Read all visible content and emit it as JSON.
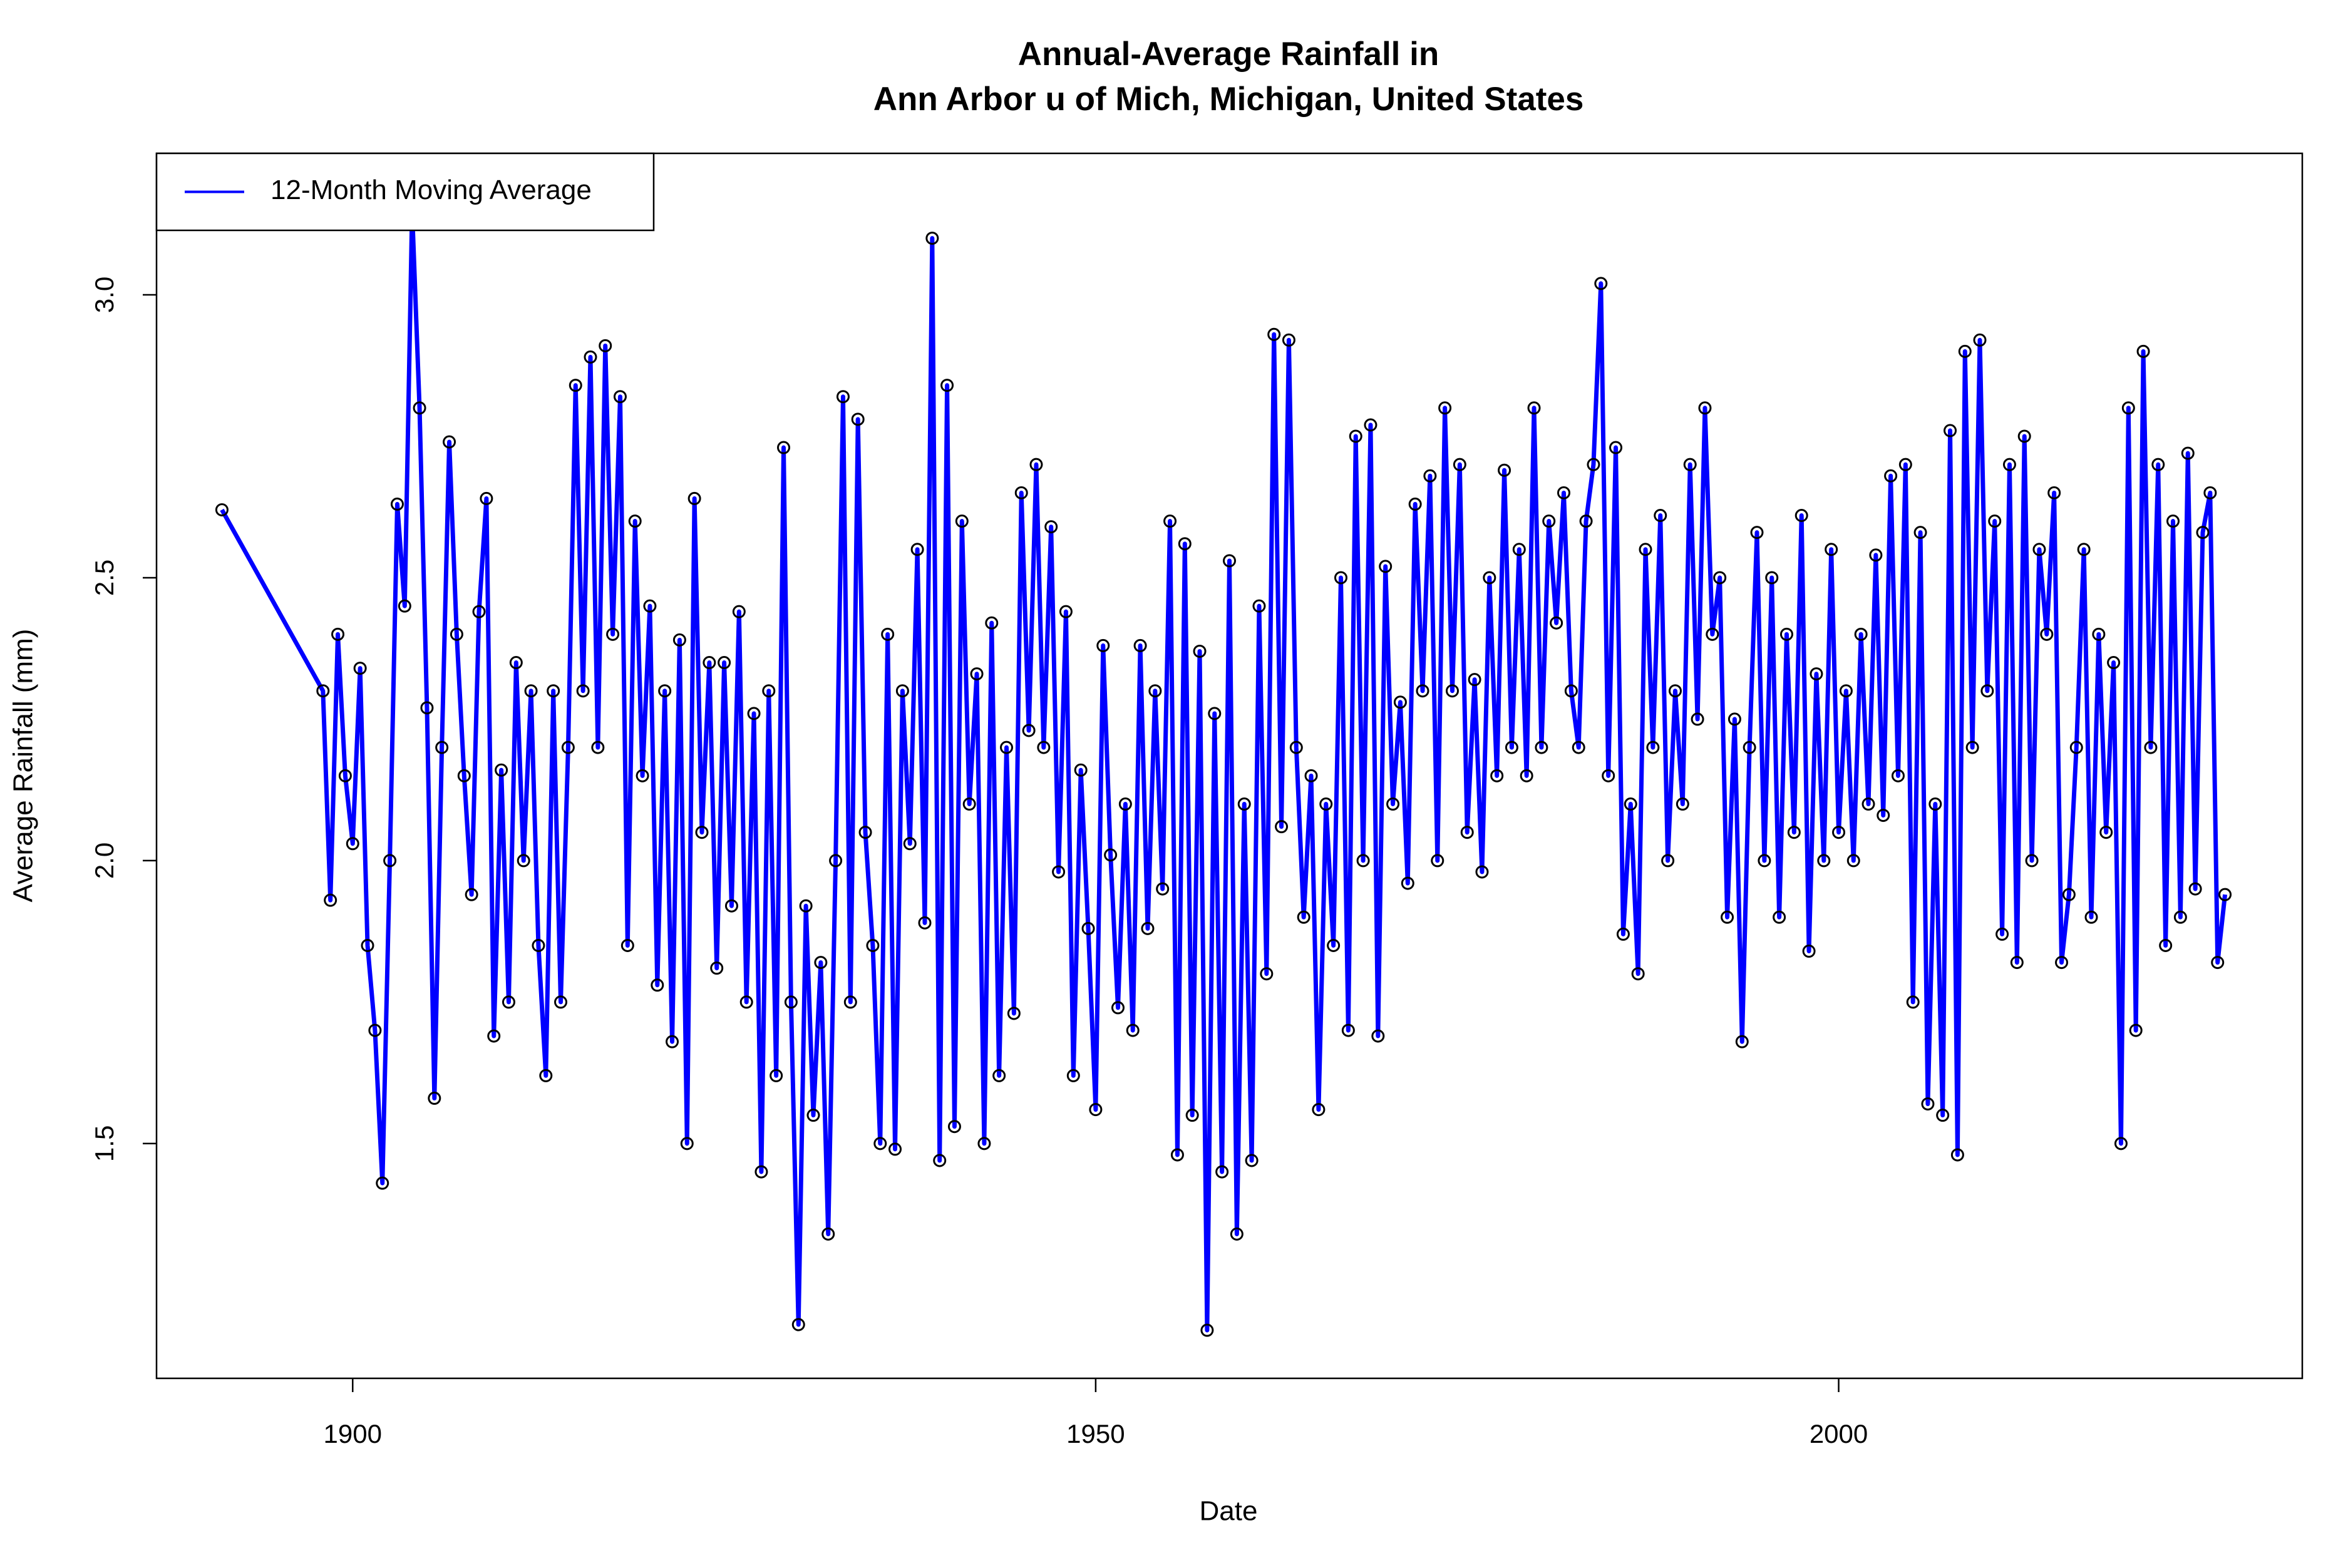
{
  "chart_data": {
    "type": "line",
    "title": [
      "Annual-Average Rainfall in",
      "Ann Arbor u of Mich, Michigan, United States"
    ],
    "x_label": "Date",
    "y_label": "Average Rainfall (mm)",
    "legend_position": "top-left",
    "xlim": [
      1886.8,
      2031.2
    ],
    "ylim": [
      1.085,
      3.25
    ],
    "xticks": [
      1900,
      1950,
      2000
    ],
    "yticks": [
      1.5,
      {
        "value": 2,
        "label": "2.0"
      },
      2.5,
      {
        "value": 3,
        "label": "3.0"
      }
    ],
    "marker_color": "#000000",
    "x": [
      1891.2,
      1898,
      1898.5,
      1899,
      1899.5,
      1900,
      1900.5,
      1901,
      1901.5,
      1902,
      1902.5,
      1903,
      1903.5,
      1904,
      1904.5,
      1905,
      1905.5,
      1906,
      1906.5,
      1907,
      1907.5,
      1908,
      1908.5,
      1909,
      1909.5,
      1910,
      1910.5,
      1911,
      1911.5,
      1912,
      1912.5,
      1913,
      1913.5,
      1914,
      1914.5,
      1915,
      1915.5,
      1916,
      1916.5,
      1917,
      1917.5,
      1918,
      1918.5,
      1919,
      1919.5,
      1920,
      1920.5,
      1921,
      1921.5,
      1922,
      1922.5,
      1923,
      1923.5,
      1924,
      1924.5,
      1925,
      1925.5,
      1926,
      1926.5,
      1927,
      1927.5,
      1928,
      1928.5,
      1929,
      1929.5,
      1930,
      1930.5,
      1931,
      1931.5,
      1932,
      1932.5,
      1933,
      1933.5,
      1934,
      1934.5,
      1935,
      1935.5,
      1936,
      1936.5,
      1937,
      1937.5,
      1938,
      1938.5,
      1939,
      1939.5,
      1940,
      1940.5,
      1941,
      1941.5,
      1942,
      1942.5,
      1943,
      1943.5,
      1944,
      1944.5,
      1945,
      1945.5,
      1946,
      1946.5,
      1947,
      1947.5,
      1948,
      1948.5,
      1949,
      1949.5,
      1950,
      1950.5,
      1951,
      1951.5,
      1952,
      1952.5,
      1953,
      1953.5,
      1954,
      1954.5,
      1955,
      1955.5,
      1956,
      1956.5,
      1957,
      1957.5,
      1958,
      1958.5,
      1959,
      1959.5,
      1960,
      1960.5,
      1961,
      1961.5,
      1962,
      1962.5,
      1963,
      1963.5,
      1964,
      1964.5,
      1965,
      1965.5,
      1966,
      1966.5,
      1967,
      1967.5,
      1968,
      1968.5,
      1969,
      1969.5,
      1970,
      1970.5,
      1971,
      1971.5,
      1972,
      1972.5,
      1973,
      1973.5,
      1974,
      1974.5,
      1975,
      1975.5,
      1976,
      1976.5,
      1977,
      1977.5,
      1978,
      1978.5,
      1979,
      1979.5,
      1980,
      1980.5,
      1981,
      1981.5,
      1982,
      1982.5,
      1983,
      1983.5,
      1984,
      1984.5,
      1985,
      1985.5,
      1986,
      1986.5,
      1987,
      1987.5,
      1988,
      1988.5,
      1989,
      1989.5,
      1990,
      1990.5,
      1991,
      1991.5,
      1992,
      1992.5,
      1993,
      1993.5,
      1994,
      1994.5,
      1995,
      1995.5,
      1996,
      1996.5,
      1997,
      1997.5,
      1998,
      1998.5,
      1999,
      1999.5,
      2000,
      2000.5,
      2001,
      2001.5,
      2002,
      2002.5,
      2003,
      2003.5,
      2004,
      2004.5,
      2005,
      2005.5,
      2006,
      2006.5,
      2007,
      2007.5,
      2008,
      2008.5,
      2009,
      2009.5,
      2010,
      2010.5,
      2011,
      2011.5,
      2012,
      2012.5,
      2013,
      2013.5,
      2014,
      2014.5,
      2015,
      2015.5,
      2016,
      2016.5,
      2017,
      2017.5,
      2018,
      2018.5,
      2019,
      2019.5,
      2020,
      2020.5,
      2021,
      2021.5,
      2022,
      2022.5,
      2023,
      2023.5,
      2024,
      2024.5,
      2025,
      2025.5,
      2026
    ],
    "series": [
      {
        "name": "12-Month Moving Average",
        "color": "#0000ff",
        "values": [
          2.62,
          2.3,
          1.93,
          2.4,
          2.15,
          2.03,
          2.34,
          1.85,
          1.7,
          1.43,
          2.0,
          2.63,
          2.45,
          3.15,
          2.8,
          2.27,
          1.58,
          2.2,
          2.74,
          2.4,
          2.15,
          1.94,
          2.44,
          2.64,
          1.69,
          2.16,
          1.75,
          2.35,
          2.0,
          2.3,
          1.85,
          1.62,
          2.3,
          1.75,
          2.2,
          2.84,
          2.3,
          2.89,
          2.2,
          2.91,
          2.4,
          2.82,
          1.85,
          2.6,
          2.15,
          2.45,
          1.78,
          2.3,
          1.68,
          2.39,
          1.5,
          2.64,
          2.05,
          2.35,
          1.81,
          2.35,
          1.92,
          2.44,
          1.75,
          2.26,
          1.45,
          2.3,
          1.62,
          2.73,
          1.75,
          1.18,
          1.92,
          1.55,
          1.82,
          1.34,
          2.0,
          2.82,
          1.75,
          2.78,
          2.05,
          1.85,
          1.5,
          2.4,
          1.49,
          2.3,
          2.03,
          2.55,
          1.89,
          3.1,
          1.47,
          2.84,
          1.53,
          2.6,
          2.1,
          2.33,
          1.5,
          2.42,
          1.62,
          2.2,
          1.73,
          2.65,
          2.23,
          2.7,
          2.2,
          2.59,
          1.98,
          2.44,
          1.62,
          2.16,
          1.88,
          1.56,
          2.38,
          2.01,
          1.74,
          2.1,
          1.7,
          2.38,
          1.88,
          2.3,
          1.95,
          2.6,
          1.48,
          2.56,
          1.55,
          2.37,
          1.17,
          2.26,
          1.45,
          2.53,
          1.34,
          2.1,
          1.47,
          2.45,
          1.8,
          2.93,
          2.06,
          2.92,
          2.2,
          1.9,
          2.15,
          1.56,
          2.1,
          1.85,
          2.5,
          1.7,
          2.75,
          2.0,
          2.77,
          1.69,
          2.52,
          2.1,
          2.28,
          1.96,
          2.63,
          2.3,
          2.68,
          2.0,
          2.8,
          2.3,
          2.7,
          2.05,
          2.32,
          1.98,
          2.5,
          2.15,
          2.69,
          2.2,
          2.55,
          2.15,
          2.8,
          2.2,
          2.6,
          2.42,
          2.65,
          2.3,
          2.2,
          2.6,
          2.7,
          3.02,
          2.15,
          2.73,
          1.87,
          2.1,
          1.8,
          2.55,
          2.2,
          2.61,
          2.0,
          2.3,
          2.1,
          2.7,
          2.25,
          2.8,
          2.4,
          2.5,
          1.9,
          2.25,
          1.68,
          2.2,
          2.58,
          2.0,
          2.5,
          1.9,
          2.4,
          2.05,
          2.61,
          1.84,
          2.33,
          2.0,
          2.55,
          2.05,
          2.3,
          2.0,
          2.4,
          2.1,
          2.54,
          2.08,
          2.68,
          2.15,
          2.7,
          1.75,
          2.58,
          1.57,
          2.1,
          1.55,
          2.76,
          1.48,
          2.9,
          2.2,
          2.92,
          2.3,
          2.6,
          1.87,
          2.7,
          1.82,
          2.75,
          2.0,
          2.55,
          2.4,
          2.65,
          1.82,
          1.94,
          2.2,
          2.55,
          1.9,
          2.4,
          2.05,
          2.35,
          1.5,
          2.8,
          1.7,
          2.9,
          2.2,
          2.7,
          1.85,
          2.6,
          1.9,
          2.72,
          1.95,
          2.58,
          2.65,
          1.82,
          1.94
        ]
      }
    ]
  }
}
